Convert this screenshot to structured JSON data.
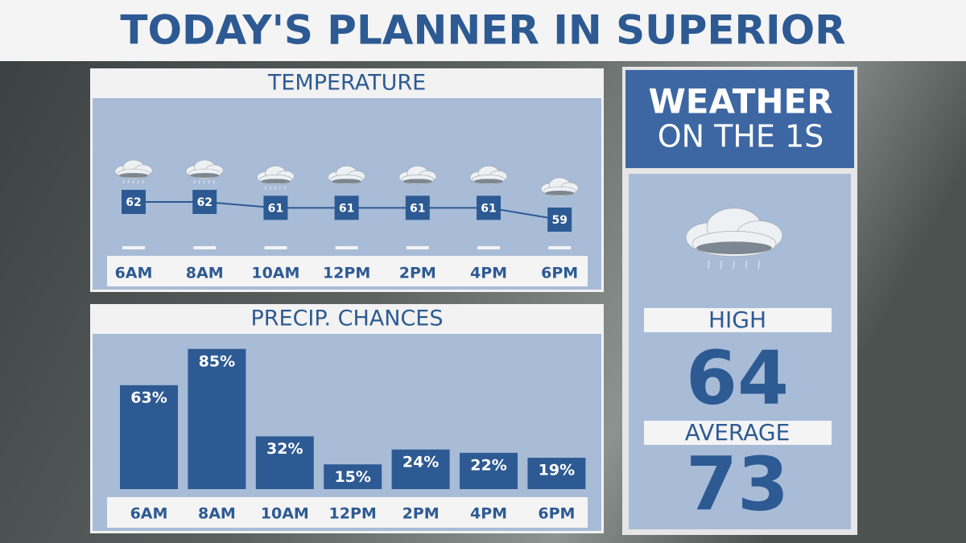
{
  "header": {
    "title": "TODAY'S PLANNER IN SUPERIOR"
  },
  "chart_data": [
    {
      "type": "line",
      "title": "TEMPERATURE",
      "categories": [
        "6AM",
        "8AM",
        "10AM",
        "12PM",
        "2PM",
        "4PM",
        "6PM"
      ],
      "values": [
        62,
        62,
        61,
        61,
        61,
        61,
        59
      ],
      "color": "#2d5a93"
    },
    {
      "type": "bar",
      "title": "PRECIP. CHANCES",
      "categories": [
        "6AM",
        "8AM",
        "10AM",
        "12PM",
        "2PM",
        "4PM",
        "6PM"
      ],
      "values": [
        63,
        85,
        32,
        15,
        24,
        22,
        19
      ],
      "value_labels": [
        "63%",
        "85%",
        "32%",
        "15%",
        "24%",
        "22%",
        "19%"
      ],
      "color": "#2d5a93"
    }
  ],
  "sidebar": {
    "logo_top": "WEATHER",
    "logo_bottom": "ON THE 1S",
    "high_label": "HIGH",
    "high": 64,
    "average_label": "AVERAGE",
    "average": 73
  }
}
